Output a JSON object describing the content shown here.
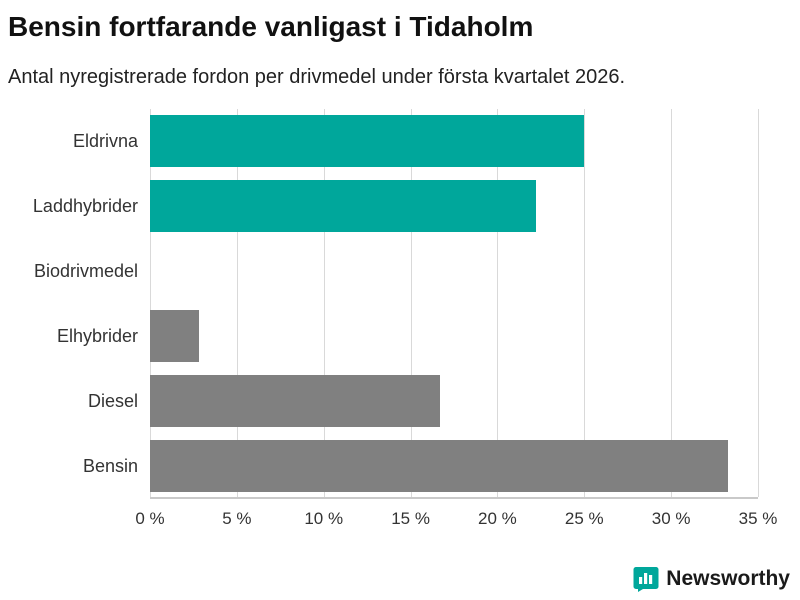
{
  "title": "Bensin fortfarande vanligast i Tidaholm",
  "subtitle": "Antal nyregistrerade fordon per drivmedel under första kvartalet 2026.",
  "chart_data": {
    "type": "bar",
    "orientation": "horizontal",
    "title": "Bensin fortfarande vanligast i Tidaholm",
    "subtitle": "Antal nyregistrerade fordon per drivmedel under första kvartalet 2026.",
    "categories": [
      "Eldrivna",
      "Laddhybrider",
      "Biodrivmedel",
      "Elhybrider",
      "Diesel",
      "Bensin"
    ],
    "values": [
      25,
      22.2,
      0,
      2.8,
      16.7,
      33.3
    ],
    "unit": "%",
    "xlim": [
      0,
      35
    ],
    "xticks": [
      0,
      5,
      10,
      15,
      20,
      25,
      30,
      35
    ],
    "xtick_labels": [
      "0 %",
      "5 %",
      "10 %",
      "15 %",
      "20 %",
      "25 %",
      "30 %",
      "35 %"
    ],
    "bar_colors": [
      "#00a79b",
      "#00a79b",
      "#808080",
      "#808080",
      "#808080",
      "#808080"
    ],
    "grid": true,
    "legend": "none"
  },
  "colors": {
    "accent_teal": "#00a79b",
    "bar_gray": "#808080",
    "gridline": "#d9d9d9"
  },
  "footer": {
    "brand": "Newsworthy",
    "logo_icon": "bar-chart-badge-icon"
  }
}
